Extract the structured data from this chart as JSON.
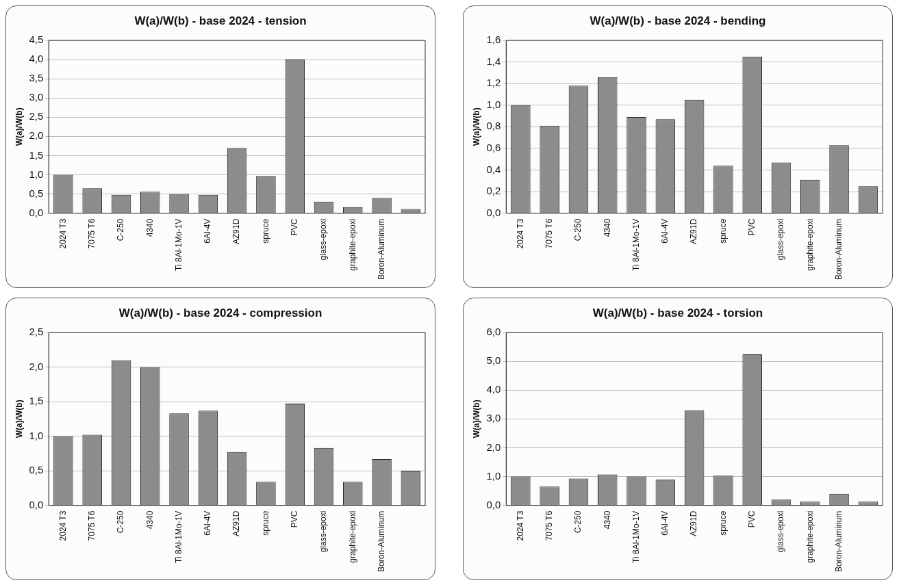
{
  "chart_data": [
    {
      "type": "bar",
      "title": "W(a)/W(b) - base 2024 - tension",
      "ylabel": "W(a)/W(b)",
      "categories": [
        "2024 T3",
        "7075 T6",
        "C-250",
        "4340",
        "Ti 8Al-1Mo-1V",
        "6Al-4V",
        "AZ91D",
        "spruce",
        "PVC",
        "glass-epoxi",
        "graphite-epoxi",
        "Boron-Aluminum",
        null
      ],
      "values": [
        1.0,
        0.65,
        0.48,
        0.56,
        0.5,
        0.48,
        1.7,
        0.97,
        4.0,
        0.3,
        0.16,
        0.4,
        0.11
      ],
      "color": "#8c8c8c",
      "ylim": [
        0,
        4.5
      ],
      "yticks": [
        {
          "value": 0,
          "label": "0,0"
        },
        {
          "value": 0.5,
          "label": "0,5"
        },
        {
          "value": 1,
          "label": "1,0"
        },
        {
          "value": 1.5,
          "label": "1,5"
        },
        {
          "value": 2,
          "label": "2,0"
        },
        {
          "value": 2.5,
          "label": "2,5"
        },
        {
          "value": 3,
          "label": "3,0"
        },
        {
          "value": 3.5,
          "label": "3,5"
        },
        {
          "value": 4,
          "label": "4,0"
        },
        {
          "value": 4.5,
          "label": "4,5"
        }
      ],
      "grid": "y"
    },
    {
      "type": "bar",
      "title": "W(a)/W(b) - base 2024 - bending",
      "ylabel": "W(a)/W(b)",
      "categories": [
        "2024 T3",
        "7075 T6",
        "C-250",
        "4340",
        "Ti 8Al-1Mo-1V",
        "6Al-4V",
        "AZ91D",
        "spruce",
        "PVC",
        "glass-epoxi",
        "graphite-epoxi",
        "Boron-Aluminum",
        null
      ],
      "values": [
        1.0,
        0.81,
        1.18,
        1.26,
        0.89,
        0.87,
        1.05,
        0.44,
        1.45,
        0.47,
        0.31,
        0.63,
        0.25
      ],
      "color": "#8c8c8c",
      "ylim": [
        0,
        1.6
      ],
      "yticks": [
        {
          "value": 0,
          "label": "0,0"
        },
        {
          "value": 0.2,
          "label": "0,2"
        },
        {
          "value": 0.4,
          "label": "0,4"
        },
        {
          "value": 0.6,
          "label": "0,6"
        },
        {
          "value": 0.8,
          "label": "0,8"
        },
        {
          "value": 1,
          "label": "1,0"
        },
        {
          "value": 1.2,
          "label": "1,2"
        },
        {
          "value": 1.4,
          "label": "1,4"
        },
        {
          "value": 1.6,
          "label": "1,6"
        }
      ],
      "grid": "y"
    },
    {
      "type": "bar",
      "title": "W(a)/W(b) - base 2024 - compression",
      "ylabel": "W(a)/W(b)",
      "categories": [
        "2024 T3",
        "7075 T6",
        "C-250",
        "4340",
        "Ti 8Al-1Mo-1V",
        "6Al-4V",
        "AZ91D",
        "spruce",
        "PVC",
        "glass-epoxi",
        "graphite-epoxi",
        "Boron-Aluminum",
        null
      ],
      "values": [
        1.0,
        1.02,
        2.1,
        2.0,
        1.33,
        1.37,
        0.77,
        0.34,
        1.47,
        0.83,
        0.34,
        0.67,
        0.5
      ],
      "color": "#8c8c8c",
      "ylim": [
        0,
        2.5
      ],
      "yticks": [
        {
          "value": 0,
          "label": "0,0"
        },
        {
          "value": 0.5,
          "label": "0,5"
        },
        {
          "value": 1,
          "label": "1,0"
        },
        {
          "value": 1.5,
          "label": "1,5"
        },
        {
          "value": 2,
          "label": "2,0"
        },
        {
          "value": 2.5,
          "label": "2,5"
        }
      ],
      "grid": "y"
    },
    {
      "type": "bar",
      "title": "W(a)/W(b) - base 2024 - torsion",
      "ylabel": "W(a)/W(b)",
      "categories": [
        "2024 T3",
        "7075 T6",
        "C-250",
        "4340",
        "Ti 8Al-1Mo-1V",
        "6Al-4V",
        "AZ91D",
        "spruce",
        "PVC",
        "glass-epoxi",
        "graphite-epoxi",
        "Boron-Aluminum",
        null
      ],
      "values": [
        1.0,
        0.65,
        0.93,
        1.07,
        1.0,
        0.9,
        3.3,
        1.03,
        5.24,
        0.2,
        0.13,
        0.4,
        0.13
      ],
      "color": "#8c8c8c",
      "ylim": [
        0,
        6
      ],
      "yticks": [
        {
          "value": 0,
          "label": "0,0"
        },
        {
          "value": 1,
          "label": "1,0"
        },
        {
          "value": 2,
          "label": "2,0"
        },
        {
          "value": 3,
          "label": "3,0"
        },
        {
          "value": 4,
          "label": "4,0"
        },
        {
          "value": 5,
          "label": "5,0"
        },
        {
          "value": 6,
          "label": "6,0"
        }
      ],
      "grid": "y"
    }
  ]
}
